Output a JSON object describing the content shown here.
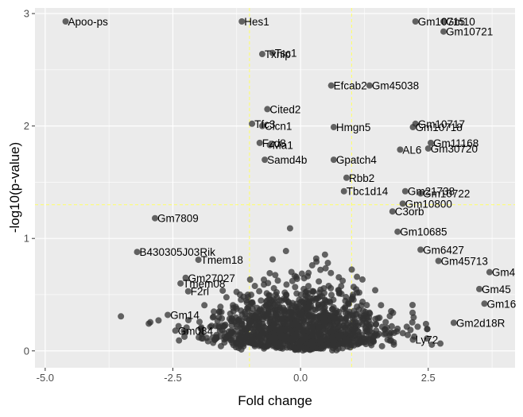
{
  "chart_data": {
    "type": "scatter",
    "title": "",
    "xlabel": "Fold change",
    "ylabel": "-log10(p-value)",
    "xlim": [
      -5.2,
      4.2
    ],
    "ylim": [
      -0.15,
      3.05
    ],
    "x_ticks": [
      {
        "value": -5.0,
        "label": "-5.0"
      },
      {
        "value": -2.5,
        "label": "-2.5"
      },
      {
        "value": 0.0,
        "label": "0.0"
      },
      {
        "value": 2.5,
        "label": "2.5"
      }
    ],
    "y_ticks": [
      {
        "value": 0,
        "label": "0"
      },
      {
        "value": 1,
        "label": "1"
      },
      {
        "value": 2,
        "label": "2"
      },
      {
        "value": 3,
        "label": "3"
      }
    ],
    "grid": true,
    "thresholds": {
      "fold_change": [
        -1.0,
        1.0
      ],
      "neg_log10_p": 1.3
    },
    "colors": {
      "panel": "#ebebeb",
      "grid": "#ffffff",
      "point": "#333333",
      "threshold": "#ffff66"
    },
    "labeled_points": [
      {
        "label": "Apoo-ps",
        "x": -4.6,
        "y": 2.93
      },
      {
        "label": "Hes1",
        "x": -1.15,
        "y": 2.93
      },
      {
        "label": "Gm10715",
        "x": 2.25,
        "y": 2.93
      },
      {
        "label": "Gm10",
        "x": 2.8,
        "y": 2.93
      },
      {
        "label": "Gm10721",
        "x": 2.8,
        "y": 2.84
      },
      {
        "label": "Txnip",
        "x": -0.75,
        "y": 2.64
      },
      {
        "label": "Tsc1",
        "x": -0.55,
        "y": 2.65
      },
      {
        "label": "Efcab2",
        "x": 0.6,
        "y": 2.36
      },
      {
        "label": "Gm45038",
        "x": 1.35,
        "y": 2.36
      },
      {
        "label": "Cited2",
        "x": -0.65,
        "y": 2.15
      },
      {
        "label": "Tfc3",
        "x": -0.95,
        "y": 2.02
      },
      {
        "label": "Clcn1",
        "x": -0.75,
        "y": 2.0
      },
      {
        "label": "Hmgn5",
        "x": 0.65,
        "y": 1.99
      },
      {
        "label": "Gm10717",
        "x": 2.25,
        "y": 2.02
      },
      {
        "label": "Gm10718",
        "x": 2.2,
        "y": 1.99
      },
      {
        "label": "Fzd8",
        "x": -0.8,
        "y": 1.85
      },
      {
        "label": "Ma1",
        "x": -0.6,
        "y": 1.83
      },
      {
        "label": "Gm11168",
        "x": 2.55,
        "y": 1.85
      },
      {
        "label": "AL6",
        "x": 1.95,
        "y": 1.79
      },
      {
        "label": "Gm30720",
        "x": 2.5,
        "y": 1.8
      },
      {
        "label": "Gpatch4",
        "x": 0.65,
        "y": 1.7
      },
      {
        "label": "Samd4b",
        "x": -0.7,
        "y": 1.7
      },
      {
        "label": "Rbb2",
        "x": 0.9,
        "y": 1.54
      },
      {
        "label": "Tbc1d14",
        "x": 0.85,
        "y": 1.42
      },
      {
        "label": "Gm21738",
        "x": 2.05,
        "y": 1.42
      },
      {
        "label": "Gm10722",
        "x": 2.35,
        "y": 1.4
      },
      {
        "label": "Gm10800",
        "x": 2.0,
        "y": 1.31
      },
      {
        "label": "C3orb",
        "x": 1.8,
        "y": 1.24
      },
      {
        "label": "Gm7809",
        "x": -2.85,
        "y": 1.18
      },
      {
        "label": "Gm10685",
        "x": 1.9,
        "y": 1.06
      },
      {
        "label": "B430305J03Rik",
        "x": -3.2,
        "y": 0.88
      },
      {
        "label": "Tmem18",
        "x": -2.0,
        "y": 0.81
      },
      {
        "label": "Gm6427",
        "x": 2.35,
        "y": 0.9
      },
      {
        "label": "Gm45713",
        "x": 2.7,
        "y": 0.8
      },
      {
        "label": "Gm27027",
        "x": -2.25,
        "y": 0.65
      },
      {
        "label": "Tmem08",
        "x": -2.35,
        "y": 0.6
      },
      {
        "label": "Gm4",
        "x": 3.7,
        "y": 0.7
      },
      {
        "label": "F2rl",
        "x": -2.2,
        "y": 0.53
      },
      {
        "label": "Gm45",
        "x": 3.5,
        "y": 0.55
      },
      {
        "label": "Gm14",
        "x": -2.6,
        "y": 0.32
      },
      {
        "label": "Gm16",
        "x": 3.6,
        "y": 0.42
      },
      {
        "label": "Gm084",
        "x": -2.45,
        "y": 0.18
      },
      {
        "label": "Gm2d18R",
        "x": 3.0,
        "y": 0.25
      },
      {
        "label": "Ly72",
        "x": 2.2,
        "y": 0.1
      }
    ]
  }
}
